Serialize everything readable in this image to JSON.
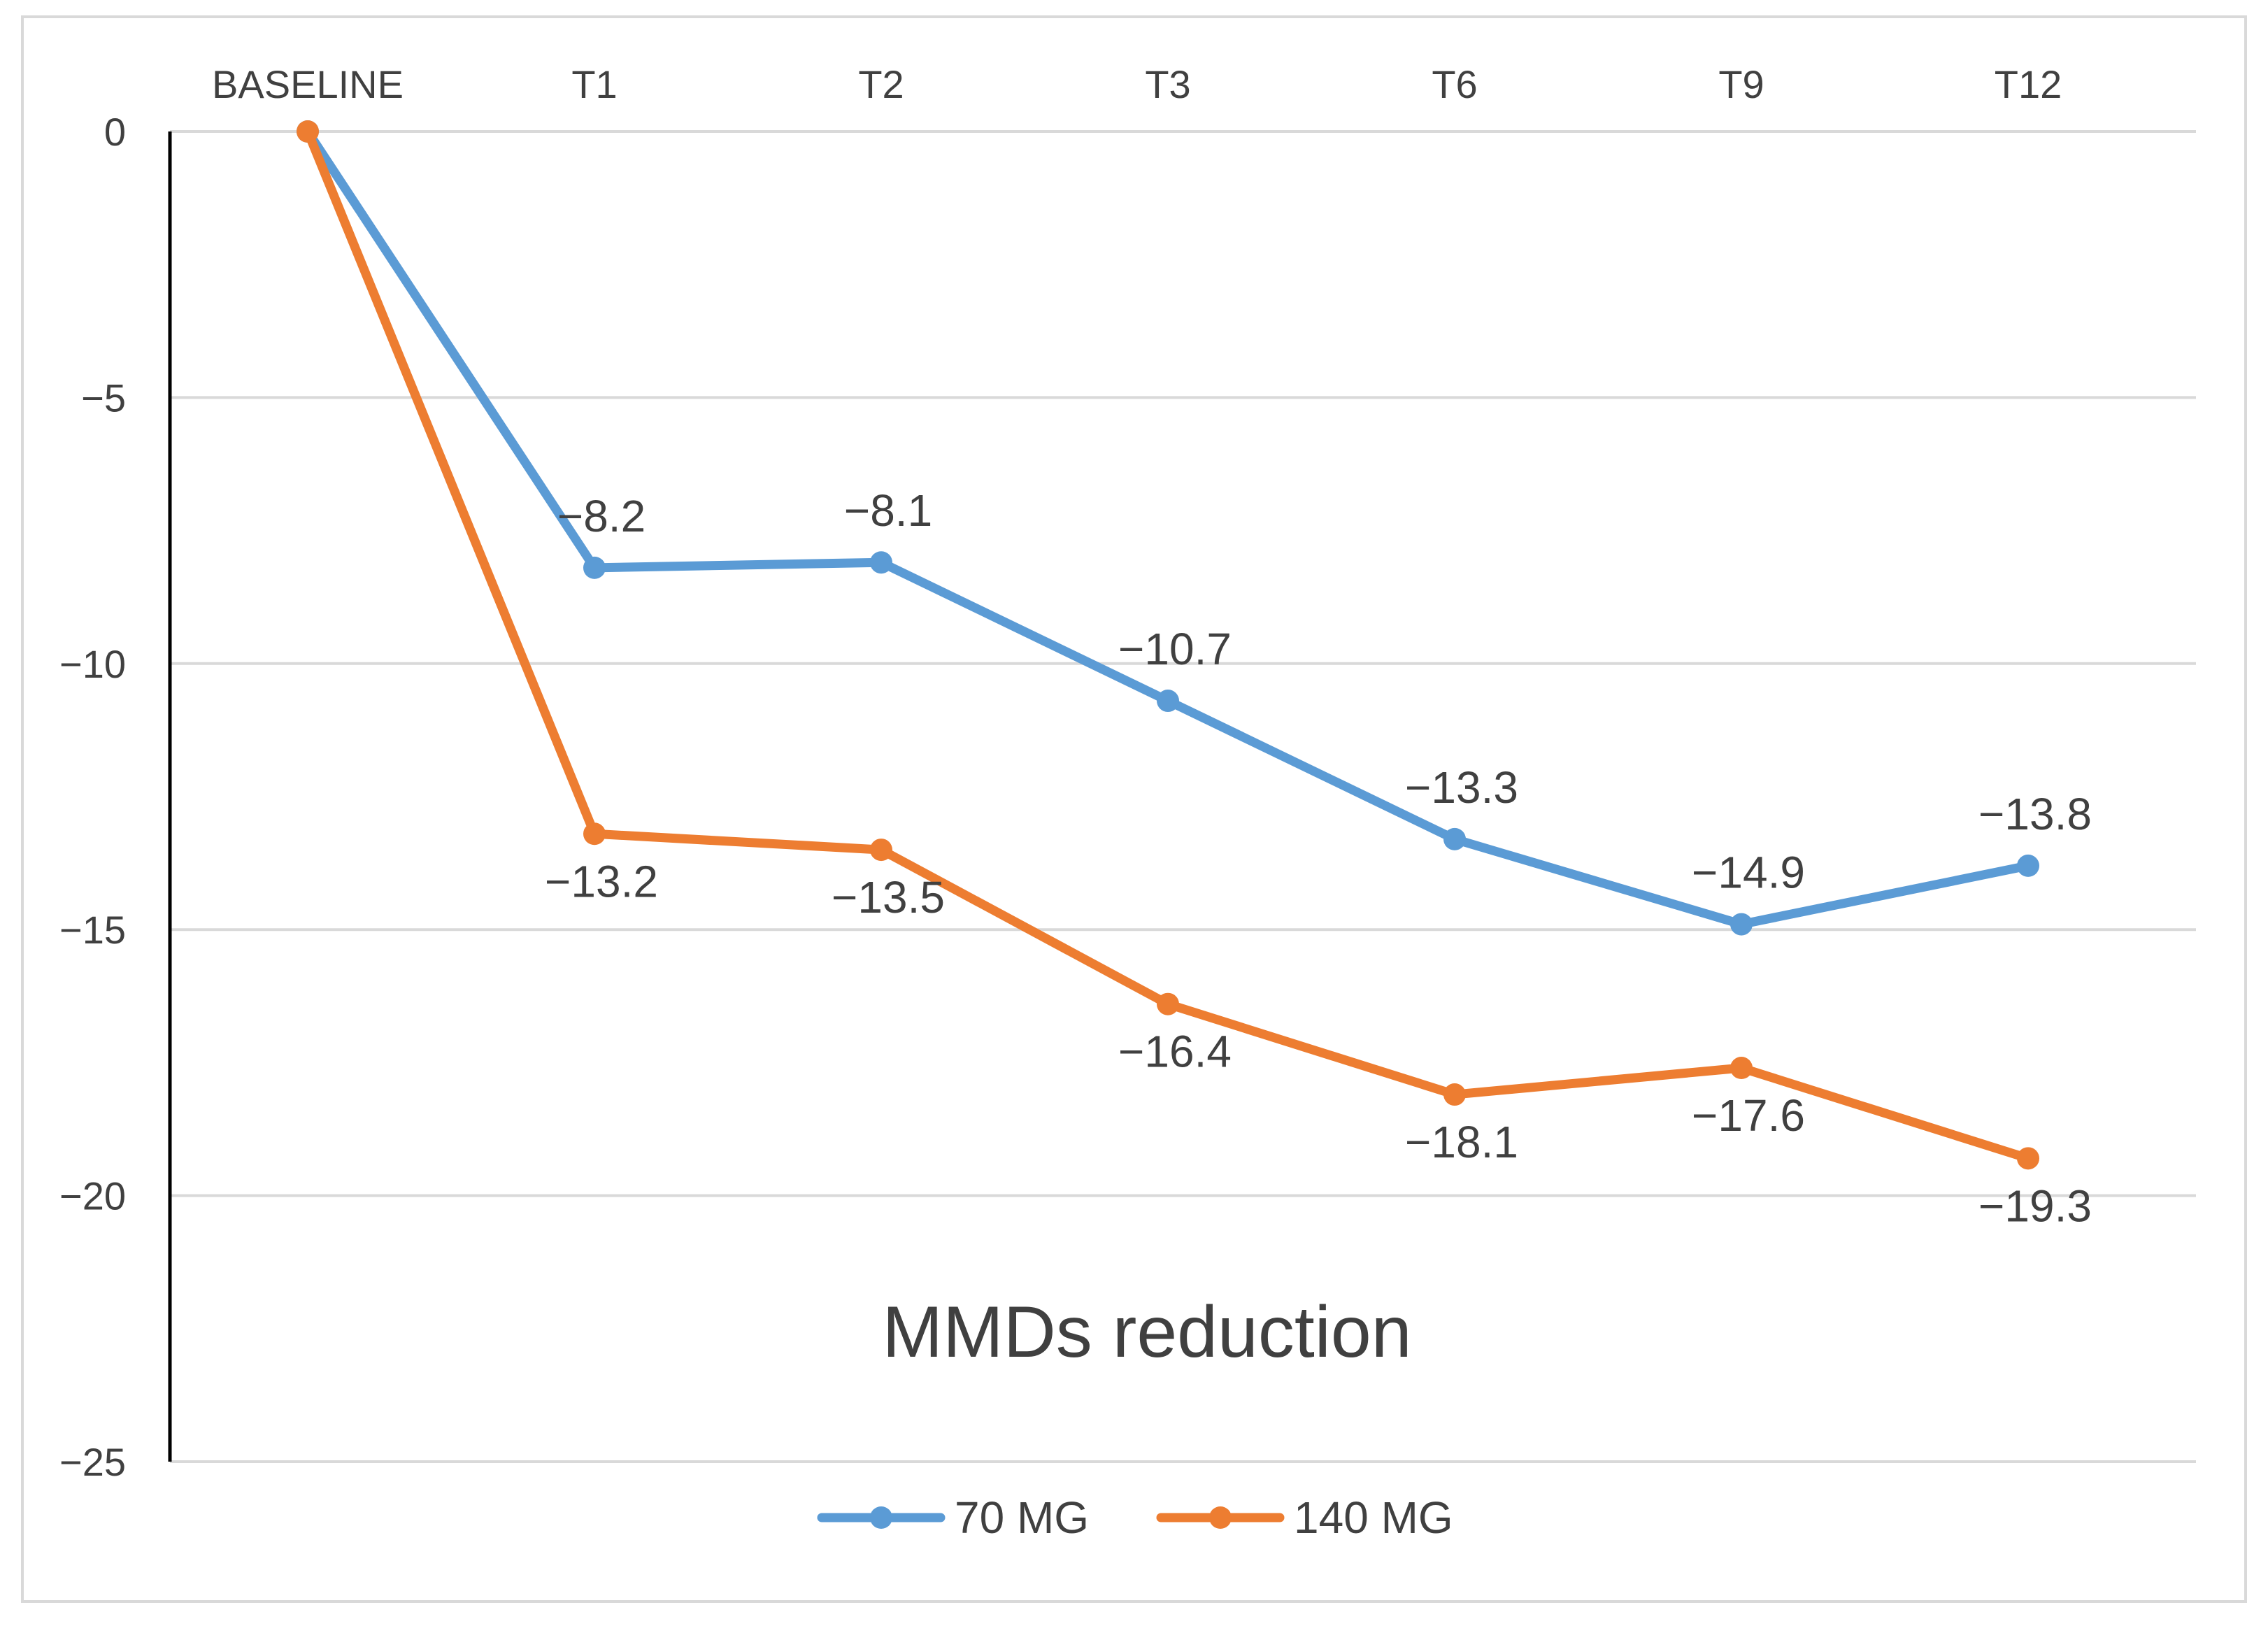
{
  "chart_data": {
    "type": "line",
    "title": "MMDs reduction",
    "xlabel": "",
    "ylabel": "",
    "categories": [
      "BASELINE",
      "T1",
      "T2",
      "T3",
      "T6",
      "T9",
      "T12"
    ],
    "ylim": [
      -25,
      0
    ],
    "yticks": [
      0,
      -5,
      -10,
      -15,
      -20,
      -25
    ],
    "ytick_labels": [
      "0",
      "−5",
      "−10",
      "−15",
      "−20",
      "−25"
    ],
    "grid": true,
    "legend_position": "bottom",
    "series": [
      {
        "name": "70 MG",
        "color": "#5b9bd5",
        "values": [
          0,
          -8.2,
          -8.1,
          -10.7,
          -13.3,
          -14.9,
          -13.8
        ],
        "labels": [
          "",
          "−8.2",
          "−8.1",
          "−10.7",
          "−13.3",
          "−14.9",
          "−13.8"
        ],
        "label_position": "above"
      },
      {
        "name": "140 MG",
        "color": "#ed7d31",
        "values": [
          0,
          -13.2,
          -13.5,
          -16.4,
          -18.1,
          -17.6,
          -19.3
        ],
        "labels": [
          "",
          "−13.2",
          "−13.5",
          "−16.4",
          "−18.1",
          "−17.6",
          "−19.3"
        ],
        "label_position": "below"
      }
    ]
  }
}
